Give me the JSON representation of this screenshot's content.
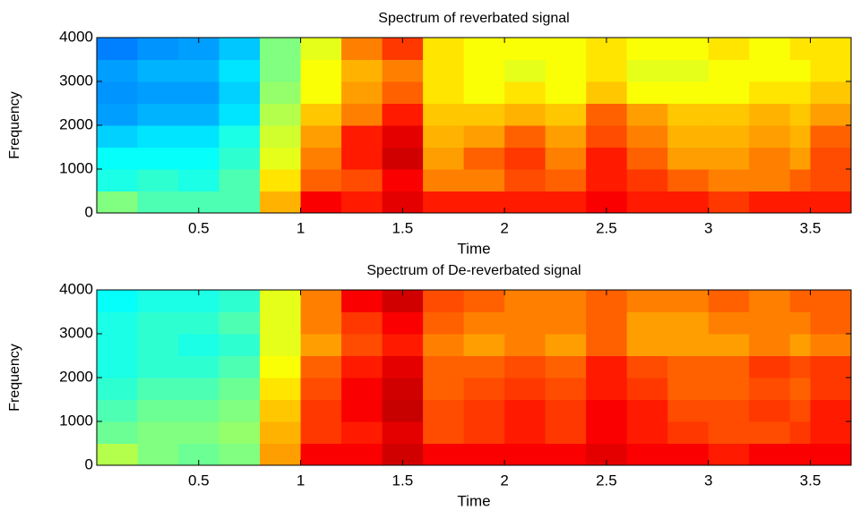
{
  "chart_data": [
    {
      "type": "heatmap",
      "title": "Spectrum of reverbated signal",
      "xlabel": "Time",
      "ylabel": "Frequency",
      "colormap": "jet",
      "clim": [
        0,
        1
      ],
      "x": [
        0.1,
        0.3,
        0.5,
        0.7,
        0.9,
        1.1,
        1.3,
        1.5,
        1.7,
        1.9,
        2.1,
        2.3,
        2.5,
        2.7,
        2.9,
        3.1,
        3.3,
        3.5,
        3.6
      ],
      "y": [
        250,
        750,
        1250,
        1750,
        2250,
        2750,
        3250,
        3750
      ],
      "z": [
        [
          0.5,
          0.45,
          0.45,
          0.45,
          0.7,
          0.88,
          0.85,
          0.9,
          0.85,
          0.85,
          0.85,
          0.85,
          0.88,
          0.85,
          0.85,
          0.82,
          0.85,
          0.85,
          0.85
        ],
        [
          0.4,
          0.42,
          0.4,
          0.45,
          0.65,
          0.78,
          0.8,
          0.88,
          0.75,
          0.75,
          0.8,
          0.78,
          0.85,
          0.82,
          0.78,
          0.75,
          0.75,
          0.78,
          0.8
        ],
        [
          0.38,
          0.38,
          0.38,
          0.42,
          0.6,
          0.75,
          0.85,
          0.92,
          0.72,
          0.78,
          0.82,
          0.75,
          0.85,
          0.78,
          0.72,
          0.72,
          0.75,
          0.72,
          0.8
        ],
        [
          0.33,
          0.35,
          0.35,
          0.4,
          0.58,
          0.72,
          0.85,
          0.9,
          0.7,
          0.72,
          0.78,
          0.72,
          0.8,
          0.75,
          0.7,
          0.7,
          0.72,
          0.7,
          0.78
        ],
        [
          0.28,
          0.3,
          0.3,
          0.35,
          0.55,
          0.68,
          0.75,
          0.85,
          0.68,
          0.68,
          0.7,
          0.68,
          0.78,
          0.72,
          0.68,
          0.68,
          0.7,
          0.68,
          0.72
        ],
        [
          0.27,
          0.28,
          0.28,
          0.33,
          0.52,
          0.62,
          0.72,
          0.78,
          0.65,
          0.62,
          0.65,
          0.62,
          0.68,
          0.62,
          0.62,
          0.62,
          0.65,
          0.65,
          0.68
        ],
        [
          0.28,
          0.3,
          0.3,
          0.35,
          0.5,
          0.62,
          0.7,
          0.75,
          0.65,
          0.62,
          0.6,
          0.62,
          0.65,
          0.6,
          0.6,
          0.62,
          0.62,
          0.62,
          0.65
        ],
        [
          0.25,
          0.27,
          0.28,
          0.32,
          0.5,
          0.6,
          0.75,
          0.82,
          0.65,
          0.62,
          0.62,
          0.62,
          0.65,
          0.62,
          0.62,
          0.65,
          0.62,
          0.65,
          0.65
        ]
      ],
      "xlim": [
        0,
        3.7
      ],
      "xticks": [
        0.5,
        1,
        1.5,
        2,
        2.5,
        3,
        3.5
      ],
      "ylim": [
        0,
        4000
      ],
      "yticks": [
        0,
        1000,
        2000,
        3000,
        4000
      ]
    },
    {
      "type": "heatmap",
      "title": "Spectrum of De-reverbated signal",
      "xlabel": "Time",
      "ylabel": "Frequency",
      "colormap": "jet",
      "clim": [
        0,
        1
      ],
      "x": [
        0.1,
        0.3,
        0.5,
        0.7,
        0.9,
        1.1,
        1.3,
        1.5,
        1.7,
        1.9,
        2.1,
        2.3,
        2.5,
        2.7,
        2.9,
        3.1,
        3.3,
        3.5,
        3.6
      ],
      "y": [
        250,
        750,
        1250,
        1750,
        2250,
        2750,
        3250,
        3750
      ],
      "z": [
        [
          0.55,
          0.5,
          0.48,
          0.5,
          0.72,
          0.88,
          0.88,
          0.92,
          0.88,
          0.88,
          0.88,
          0.88,
          0.9,
          0.88,
          0.88,
          0.85,
          0.88,
          0.88,
          0.88
        ],
        [
          0.48,
          0.5,
          0.5,
          0.52,
          0.7,
          0.82,
          0.85,
          0.9,
          0.8,
          0.82,
          0.85,
          0.82,
          0.88,
          0.85,
          0.82,
          0.8,
          0.8,
          0.82,
          0.85
        ],
        [
          0.45,
          0.48,
          0.48,
          0.5,
          0.68,
          0.82,
          0.88,
          0.93,
          0.8,
          0.82,
          0.85,
          0.82,
          0.88,
          0.85,
          0.8,
          0.8,
          0.82,
          0.8,
          0.85
        ],
        [
          0.42,
          0.45,
          0.45,
          0.48,
          0.65,
          0.8,
          0.88,
          0.92,
          0.78,
          0.8,
          0.82,
          0.8,
          0.85,
          0.82,
          0.78,
          0.78,
          0.8,
          0.78,
          0.82
        ],
        [
          0.4,
          0.42,
          0.42,
          0.45,
          0.62,
          0.78,
          0.85,
          0.9,
          0.78,
          0.78,
          0.8,
          0.78,
          0.85,
          0.8,
          0.78,
          0.78,
          0.82,
          0.8,
          0.82
        ],
        [
          0.4,
          0.42,
          0.4,
          0.42,
          0.6,
          0.72,
          0.8,
          0.85,
          0.75,
          0.72,
          0.75,
          0.72,
          0.78,
          0.72,
          0.72,
          0.72,
          0.75,
          0.72,
          0.75
        ],
        [
          0.4,
          0.42,
          0.42,
          0.45,
          0.6,
          0.75,
          0.82,
          0.88,
          0.78,
          0.75,
          0.75,
          0.75,
          0.78,
          0.72,
          0.72,
          0.75,
          0.75,
          0.75,
          0.78
        ],
        [
          0.38,
          0.4,
          0.4,
          0.42,
          0.6,
          0.75,
          0.88,
          0.92,
          0.8,
          0.78,
          0.75,
          0.75,
          0.78,
          0.75,
          0.75,
          0.78,
          0.75,
          0.78,
          0.78
        ]
      ],
      "xlim": [
        0,
        3.7
      ],
      "xticks": [
        0.5,
        1,
        1.5,
        2,
        2.5,
        3,
        3.5
      ],
      "ylim": [
        0,
        4000
      ],
      "yticks": [
        0,
        1000,
        2000,
        3000,
        4000
      ]
    }
  ]
}
